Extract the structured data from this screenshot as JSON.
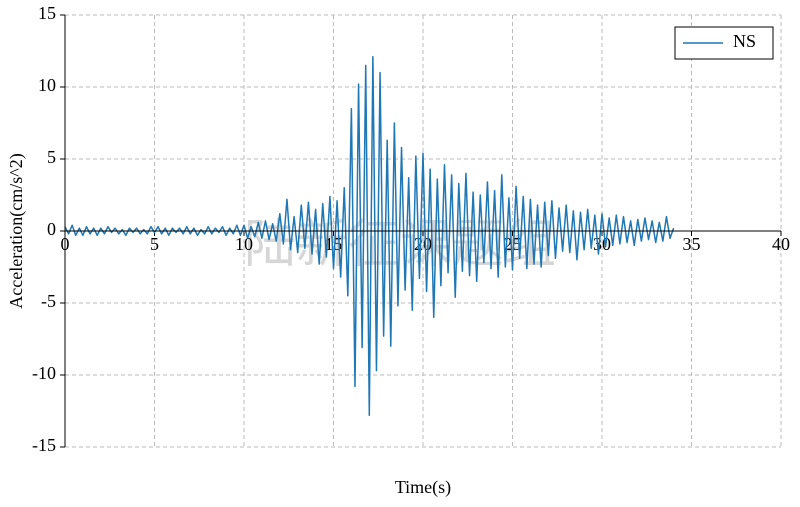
{
  "chart_data": {
    "type": "line",
    "xlabel": "Time(s)",
    "ylabel": "Acceleration(cm/s^2)",
    "watermark": "陆新征课题组",
    "legend": "upper right",
    "grid": true,
    "xlim": [
      0,
      40
    ],
    "xticks": [
      0,
      5,
      10,
      15,
      20,
      25,
      30,
      35,
      40
    ],
    "ylim": [
      -15,
      15
    ],
    "yticks": [
      -15,
      -10,
      -5,
      0,
      5,
      10,
      15
    ],
    "x": [
      0,
      0.2,
      0.4,
      0.6,
      0.8,
      1,
      1.2,
      1.4,
      1.6,
      1.8,
      2,
      2.2,
      2.4,
      2.6,
      2.8,
      3,
      3.2,
      3.4,
      3.6,
      3.8,
      4,
      4.2,
      4.4,
      4.6,
      4.8,
      5,
      5.2,
      5.4,
      5.6,
      5.8,
      6,
      6.2,
      6.4,
      6.6,
      6.8,
      7,
      7.2,
      7.4,
      7.6,
      7.8,
      8,
      8.2,
      8.4,
      8.6,
      8.8,
      9,
      9.2,
      9.4,
      9.6,
      9.8,
      10,
      10.2,
      10.4,
      10.6,
      10.8,
      11,
      11.2,
      11.4,
      11.6,
      11.8,
      12,
      12.2,
      12.4,
      12.6,
      12.8,
      13,
      13.2,
      13.4,
      13.6,
      13.8,
      14,
      14.2,
      14.4,
      14.6,
      14.8,
      15,
      15.2,
      15.4,
      15.6,
      15.8,
      16,
      16.2,
      16.4,
      16.6,
      16.8,
      17,
      17.2,
      17.4,
      17.6,
      17.8,
      18,
      18.2,
      18.4,
      18.6,
      18.8,
      19,
      19.2,
      19.4,
      19.6,
      19.8,
      20,
      20.2,
      20.4,
      20.6,
      20.8,
      21,
      21.2,
      21.4,
      21.6,
      21.8,
      22,
      22.2,
      22.4,
      22.6,
      22.8,
      23,
      23.2,
      23.4,
      23.6,
      23.8,
      24,
      24.2,
      24.4,
      24.6,
      24.8,
      25,
      25.2,
      25.4,
      25.6,
      25.8,
      26,
      26.2,
      26.4,
      26.6,
      26.8,
      27,
      27.2,
      27.4,
      27.6,
      27.8,
      28,
      28.2,
      28.4,
      28.6,
      28.8,
      29,
      29.2,
      29.4,
      29.6,
      29.8,
      30,
      30.2,
      30.4,
      30.6,
      30.8,
      31,
      31.2,
      31.4,
      31.6,
      31.8,
      32,
      32.2,
      32.4,
      32.6,
      32.8,
      33,
      33.2,
      33.4,
      33.6,
      33.8,
      34
    ],
    "series": [
      {
        "name": "NS",
        "color": "#1f77b4",
        "values": [
          0.3,
          -0.2,
          0.4,
          -0.3,
          0.2,
          -0.3,
          0.3,
          -0.2,
          0.2,
          -0.3,
          0.2,
          -0.2,
          0.3,
          -0.1,
          0.2,
          -0.2,
          0.1,
          -0.3,
          0.2,
          -0.1,
          0.2,
          -0.2,
          0.1,
          -0.2,
          0.3,
          -0.1,
          0.3,
          -0.2,
          0.2,
          -0.3,
          0.2,
          -0.1,
          0.2,
          -0.2,
          0.3,
          -0.2,
          0.2,
          -0.3,
          0.1,
          -0.2,
          0.3,
          -0.2,
          0.2,
          -0.1,
          0.3,
          -0.3,
          0.2,
          -0.2,
          0.4,
          -0.3,
          0.4,
          -0.5,
          0.3,
          -0.4,
          0.6,
          -0.5,
          0.7,
          -0.6,
          0.5,
          -0.7,
          1.2,
          -0.9,
          2.2,
          -1.3,
          1.0,
          -1.5,
          1.8,
          -1.2,
          2.0,
          -1.6,
          1.5,
          -2.3,
          1.9,
          -1.8,
          2.4,
          -2.6,
          2.1,
          -3.2,
          3.0,
          -4.5,
          8.5,
          -10.8,
          10.2,
          -8.1,
          11.5,
          -12.8,
          12.1,
          -9.7,
          11.0,
          -7.3,
          6.3,
          -8.0,
          7.5,
          -5.2,
          5.8,
          -4.1,
          3.7,
          -5.5,
          5.2,
          -3.3,
          5.4,
          -4.2,
          4.3,
          -6.0,
          3.6,
          -3.8,
          4.6,
          -2.9,
          3.9,
          -4.6,
          3.3,
          -2.8,
          4.0,
          -3.1,
          2.7,
          -3.5,
          2.5,
          -2.2,
          3.4,
          -2.6,
          2.8,
          -3.2,
          3.9,
          -2.5,
          2.3,
          -2.7,
          3.1,
          -1.9,
          2.4,
          -2.6,
          2.2,
          -2.3,
          1.8,
          -2.5,
          2.0,
          -1.7,
          2.1,
          -1.9,
          1.6,
          -1.4,
          1.8,
          -1.5,
          1.4,
          -2.0,
          1.3,
          -1.3,
          1.5,
          -1.2,
          1.1,
          -1.6,
          1.2,
          -1.1,
          0.9,
          -1.0,
          1.1,
          -0.9,
          1.0,
          -0.8,
          0.7,
          -1.0,
          0.8,
          -0.7,
          0.9,
          -0.6,
          0.7,
          -0.8,
          0.6,
          -0.7,
          1.0,
          -0.5,
          0.2
        ]
      }
    ]
  }
}
